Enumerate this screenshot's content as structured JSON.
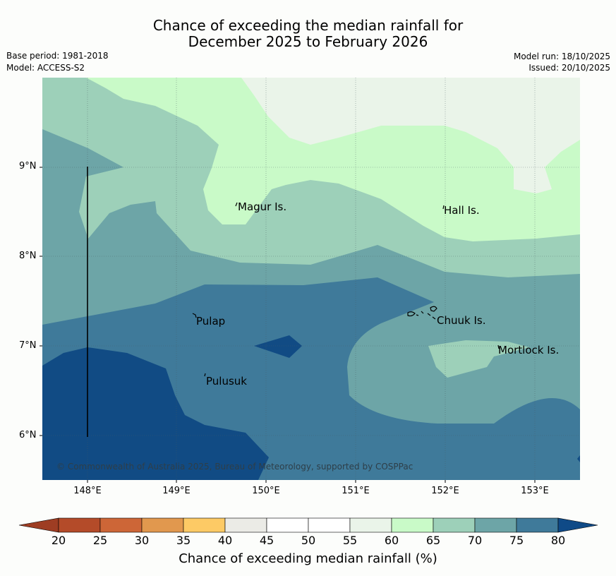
{
  "title": {
    "line1": "Chance of exceeding the median rainfall for",
    "line2": "December 2025 to February 2026"
  },
  "meta": {
    "base_period": "Base period: 1981-2018",
    "model": "Model: ACCESS-S2",
    "model_run": "Model run: 18/10/2025",
    "issued": "Issued: 20/10/2025"
  },
  "map": {
    "lat_labels": [
      "9°N",
      "8°N",
      "7°N",
      "6°N"
    ],
    "lon_labels": [
      "148°E",
      "149°E",
      "150°E",
      "151°E",
      "152°E",
      "153°E"
    ],
    "places": [
      "Magur Is.",
      "Hall Is.",
      "Pulap",
      "Chuuk Is.",
      "Mortlock Is.",
      "Pulusuk"
    ],
    "copyright": "© Commonwealth of Australia 2025, Bureau of Meteorology, supported by COSPPac"
  },
  "colorbar": {
    "title": "Chance of exceeding median rainfall (%)",
    "ticks": [
      "20",
      "25",
      "30",
      "35",
      "40",
      "45",
      "50",
      "55",
      "60",
      "65",
      "70",
      "75",
      "80"
    ],
    "below_color": "#9e3d23",
    "above_color": "#0f4a87",
    "colors": [
      "#b44b29",
      "#cd6637",
      "#e1984e",
      "#fdca65",
      "#ebebe6",
      "#ffffff",
      "#ffffff",
      "#eaf4e9",
      "#c9fac8",
      "#9dd0b9",
      "#6da5a7",
      "#3f7a9a"
    ]
  }
}
